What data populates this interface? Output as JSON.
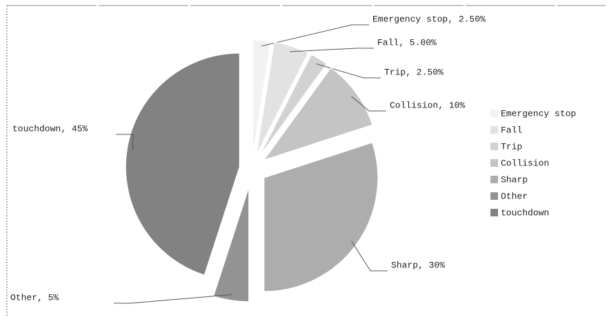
{
  "chart_data": {
    "type": "pie",
    "categories": [
      "Emergency stop",
      "Fall",
      "Trip",
      "Collision",
      "Sharp",
      "Other",
      "touchdown"
    ],
    "values": [
      2.5,
      5,
      2.5,
      10,
      30,
      5,
      45
    ],
    "value_labels": [
      "Emergency stop, 2.50%",
      "Fall, 5.00%",
      "Trip, 2.50%",
      "Collision, 10%",
      "Sharp, 30%",
      "Other, 5%",
      "touchdown, 45%"
    ],
    "colors": [
      "#f2f2f2",
      "#e2e2e2",
      "#d2d2d2",
      "#c4c4c4",
      "#adadad",
      "#939393",
      "#828282"
    ],
    "legend": "right"
  }
}
